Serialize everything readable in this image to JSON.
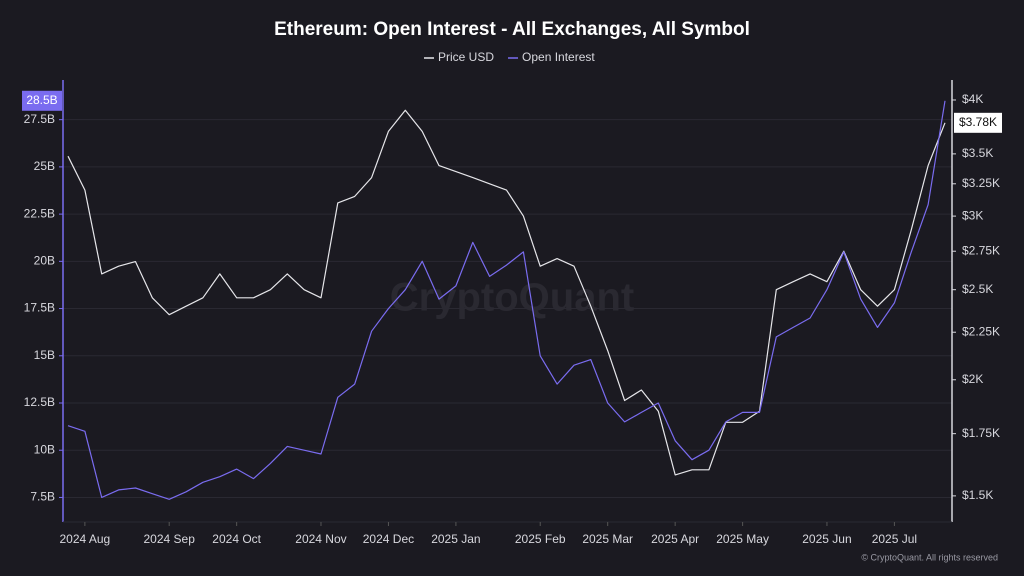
{
  "chart_data": {
    "type": "line",
    "title": "Ethereum: Open Interest - All Exchanges, All Symbol",
    "watermark": "CryptoQuant",
    "footer": "© CryptoQuant. All rights reserved",
    "categories": [
      null,
      "2024 Aug",
      null,
      null,
      null,
      null,
      "2024 Sep",
      null,
      null,
      null,
      "2024 Oct",
      null,
      null,
      null,
      null,
      "2024 Nov",
      null,
      null,
      null,
      "2024 Dec",
      null,
      null,
      null,
      "2025 Jan",
      null,
      null,
      null,
      null,
      "2025 Feb",
      null,
      null,
      null,
      "2025 Mar",
      null,
      null,
      null,
      "2025 Apr",
      null,
      null,
      null,
      "2025 May",
      null,
      null,
      null,
      null,
      "2025 Jun",
      null,
      null,
      null,
      "2025 Jul",
      null,
      null,
      null
    ],
    "series": [
      {
        "name": "Price USD",
        "color": "#e6e6ea",
        "axis": "y2",
        "values": [
          3480,
          3200,
          2600,
          2650,
          2680,
          2450,
          2350,
          2400,
          2450,
          2600,
          2450,
          2450,
          2500,
          2600,
          2500,
          2450,
          3100,
          3150,
          3300,
          3700,
          3900,
          3700,
          3400,
          3350,
          3300,
          3250,
          3200,
          3000,
          2650,
          2700,
          2650,
          2400,
          2150,
          1900,
          1950,
          1850,
          1580,
          1600,
          1600,
          1800,
          1800,
          1850,
          2500,
          2550,
          2600,
          2550,
          2750,
          2500,
          2400,
          2500,
          2900,
          3400,
          3780
        ],
        "value_labels": [
          null,
          null,
          null,
          null,
          null,
          null,
          null,
          null,
          null,
          null,
          null,
          null,
          null,
          null,
          null,
          null,
          null,
          null,
          null,
          null,
          null,
          null,
          null,
          null,
          null,
          null,
          null,
          null,
          null,
          null,
          null,
          null,
          null,
          null,
          null,
          null,
          null,
          null,
          null,
          null,
          null,
          null,
          null,
          null,
          null,
          null,
          null,
          null,
          null,
          null,
          null,
          null,
          "$3.78K"
        ]
      },
      {
        "name": "Open Interest",
        "color": "#7a6cf0",
        "values": [
          11.3,
          11.0,
          7.5,
          7.9,
          8.0,
          7.7,
          7.4,
          7.8,
          8.3,
          8.6,
          9.0,
          8.5,
          9.3,
          10.2,
          10.0,
          9.8,
          12.8,
          13.5,
          16.3,
          17.5,
          18.5,
          20.0,
          18.0,
          18.7,
          21.0,
          19.2,
          19.8,
          20.5,
          15.0,
          13.5,
          14.5,
          14.8,
          12.5,
          11.5,
          12.0,
          12.5,
          10.5,
          9.5,
          10.0,
          11.5,
          12.0,
          12.0,
          16.0,
          16.5,
          17.0,
          18.5,
          20.5,
          18.0,
          16.5,
          17.8,
          20.5,
          23.0,
          28.5
        ],
        "value_labels": [
          null,
          null,
          null,
          null,
          null,
          null,
          null,
          null,
          null,
          null,
          null,
          null,
          null,
          null,
          null,
          null,
          null,
          null,
          null,
          null,
          null,
          null,
          null,
          null,
          null,
          null,
          null,
          null,
          null,
          null,
          null,
          null,
          null,
          null,
          null,
          null,
          null,
          null,
          null,
          null,
          null,
          null,
          null,
          null,
          null,
          null,
          null,
          null,
          null,
          null,
          null,
          null,
          "28.5B"
        ]
      }
    ],
    "ylim": [
      6.2,
      29.6
    ],
    "yticks": [
      {
        "value": 7.5,
        "label": "7.5B"
      },
      {
        "value": 10,
        "label": "10B"
      },
      {
        "value": 12.5,
        "label": "12.5B"
      },
      {
        "value": 15,
        "label": "15B"
      },
      {
        "value": 17.5,
        "label": "17.5B"
      },
      {
        "value": 20,
        "label": "20B"
      },
      {
        "value": 22.5,
        "label": "22.5B"
      },
      {
        "value": 25,
        "label": "25B"
      },
      {
        "value": 27.5,
        "label": "27.5B"
      }
    ],
    "y2lim": [
      1406,
      4203
    ],
    "y2log": true,
    "y2ticks": [
      {
        "value": 1500,
        "label": "$1.5K"
      },
      {
        "value": 1750,
        "label": "$1.75K"
      },
      {
        "value": 2000,
        "label": "$2K"
      },
      {
        "value": 2250,
        "label": "$2.25K"
      },
      {
        "value": 2500,
        "label": "$2.5K"
      },
      {
        "value": 2750,
        "label": "$2.75K"
      },
      {
        "value": 3000,
        "label": "$3K"
      },
      {
        "value": 3250,
        "label": "$3.25K"
      },
      {
        "value": 3500,
        "label": "$3.5K"
      },
      {
        "value": 4000,
        "label": "$4K"
      }
    ],
    "grid": true
  }
}
